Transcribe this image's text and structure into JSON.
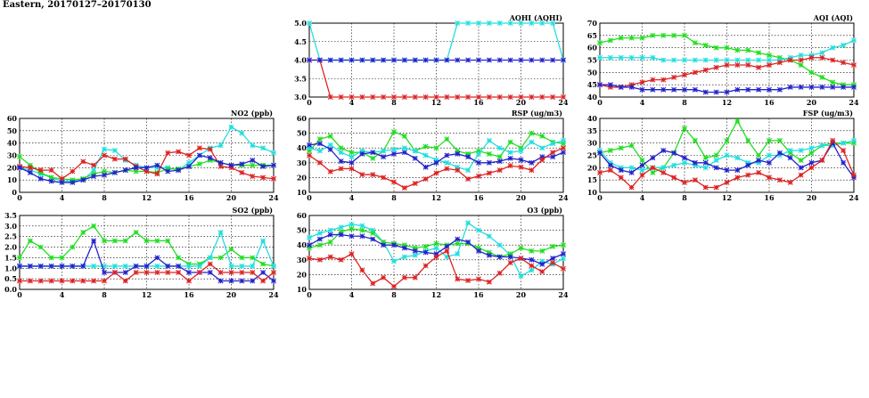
{
  "page_title": "Eastern, 20170127–20170130",
  "colors": {
    "cyan": "#22dede",
    "green": "#22dd22",
    "red": "#dd2222",
    "blue": "#2222cc",
    "grid": "#000000"
  },
  "chart_data": [
    {
      "id": "aqhi",
      "type": "line",
      "title": "AQHI (AQHI)",
      "xlim": [
        0,
        24
      ],
      "x_ticks": [
        0,
        4,
        8,
        12,
        16,
        20,
        24
      ],
      "ylim": [
        3.0,
        5.0
      ],
      "y_ticks": [
        3.0,
        3.5,
        4.0,
        4.5,
        5.0
      ],
      "y_tick_labels": [
        "3.0",
        "3.5",
        "4.0",
        "4.5",
        "5.0"
      ],
      "grid": true,
      "series": [
        {
          "color": "cyan",
          "values": [
            5,
            4,
            4,
            4,
            4,
            4,
            4,
            4,
            4,
            4,
            4,
            4,
            4,
            4,
            5,
            5,
            5,
            5,
            5,
            5,
            5,
            5,
            5,
            5,
            4
          ]
        },
        {
          "color": "red",
          "values": [
            4,
            4,
            3,
            3,
            3,
            3,
            3,
            3,
            3,
            3,
            3,
            3,
            3,
            3,
            3,
            3,
            3,
            3,
            3,
            3,
            3,
            3,
            3,
            3,
            3
          ]
        },
        {
          "color": "blue",
          "values": [
            4,
            4,
            4,
            4,
            4,
            4,
            4,
            4,
            4,
            4,
            4,
            4,
            4,
            4,
            4,
            4,
            4,
            4,
            4,
            4,
            4,
            4,
            4,
            4,
            4
          ]
        }
      ]
    },
    {
      "id": "aqi",
      "type": "line",
      "title": "AQI (AQI)",
      "xlim": [
        0,
        24
      ],
      "x_ticks": [
        0,
        4,
        8,
        12,
        16,
        20,
        24
      ],
      "ylim": [
        40,
        70
      ],
      "y_ticks": [
        40,
        45,
        50,
        55,
        60,
        65,
        70
      ],
      "y_tick_labels": [
        "40",
        "45",
        "50",
        "55",
        "60",
        "65",
        "70"
      ],
      "grid": true,
      "series": [
        {
          "color": "green",
          "values": [
            62,
            63,
            64,
            64,
            64,
            65,
            65,
            65,
            65,
            62,
            61,
            60,
            60,
            59,
            59,
            58,
            57,
            56,
            55,
            53,
            50,
            48,
            46,
            45,
            45
          ]
        },
        {
          "color": "cyan",
          "values": [
            56,
            56,
            56,
            56,
            56,
            56,
            55,
            55,
            55,
            55,
            55,
            55,
            55,
            55,
            55,
            55,
            55,
            55,
            56,
            57,
            57,
            58,
            60,
            61,
            63
          ]
        },
        {
          "color": "red",
          "values": [
            45,
            44,
            44,
            45,
            46,
            47,
            47,
            48,
            49,
            50,
            51,
            52,
            53,
            53,
            53,
            52,
            53,
            54,
            55,
            55,
            56,
            56,
            55,
            54,
            53
          ]
        },
        {
          "color": "blue",
          "values": [
            45,
            45,
            44,
            44,
            43,
            43,
            43,
            43,
            43,
            43,
            42,
            42,
            42,
            43,
            43,
            43,
            43,
            43,
            44,
            44,
            44,
            44,
            44,
            44,
            44
          ]
        }
      ]
    },
    {
      "id": "no2",
      "type": "line",
      "title": "NO2 (ppb)",
      "xlim": [
        0,
        24
      ],
      "x_ticks": [
        0,
        4,
        8,
        12,
        16,
        20,
        24
      ],
      "ylim": [
        0,
        60
      ],
      "y_ticks": [
        0,
        10,
        20,
        30,
        40,
        50,
        60
      ],
      "y_tick_labels": [
        "0",
        "10",
        "20",
        "30",
        "40",
        "50",
        "60"
      ],
      "grid": true,
      "series": [
        {
          "color": "cyan",
          "values": [
            20,
            18,
            15,
            12,
            9,
            9,
            10,
            18,
            35,
            34,
            26,
            22,
            20,
            20,
            20,
            18,
            24,
            30,
            36,
            38,
            53,
            48,
            38,
            36,
            32
          ]
        },
        {
          "color": "green",
          "values": [
            29,
            22,
            16,
            12,
            11,
            10,
            11,
            15,
            17,
            16,
            18,
            17,
            17,
            16,
            19,
            19,
            21,
            23,
            26,
            24,
            22,
            22,
            22,
            22,
            22
          ]
        },
        {
          "color": "red",
          "values": [
            21,
            20,
            18,
            18,
            11,
            17,
            25,
            22,
            30,
            27,
            27,
            21,
            17,
            15,
            32,
            33,
            30,
            36,
            35,
            21,
            20,
            16,
            13,
            12,
            11
          ]
        },
        {
          "color": "blue",
          "values": [
            20,
            16,
            11,
            9,
            8,
            8,
            10,
            13,
            14,
            16,
            18,
            20,
            20,
            22,
            17,
            18,
            21,
            30,
            28,
            24,
            22,
            23,
            26,
            21,
            22
          ]
        }
      ]
    },
    {
      "id": "rsp",
      "type": "line",
      "title": "RSP (ug/m3)",
      "xlim": [
        0,
        24
      ],
      "x_ticks": [
        0,
        4,
        8,
        12,
        16,
        20,
        24
      ],
      "ylim": [
        10,
        60
      ],
      "y_ticks": [
        10,
        20,
        30,
        40,
        50,
        60
      ],
      "y_tick_labels": [
        "10",
        "20",
        "30",
        "40",
        "50",
        "60"
      ],
      "grid": true,
      "series": [
        {
          "color": "green",
          "values": [
            38,
            46,
            48,
            40,
            37,
            37,
            33,
            38,
            51,
            48,
            38,
            41,
            40,
            46,
            38,
            36,
            38,
            36,
            34,
            44,
            40,
            50,
            48,
            44,
            43
          ]
        },
        {
          "color": "cyan",
          "values": [
            40,
            38,
            42,
            37,
            34,
            38,
            37,
            38,
            39,
            40,
            38,
            35,
            32,
            30,
            27,
            25,
            36,
            45,
            40,
            37,
            38,
            44,
            40,
            43,
            45
          ]
        },
        {
          "color": "blue",
          "values": [
            42,
            43,
            39,
            31,
            30,
            36,
            37,
            34,
            36,
            37,
            33,
            27,
            30,
            35,
            36,
            34,
            30,
            30,
            31,
            33,
            32,
            30,
            34,
            34,
            37
          ]
        },
        {
          "color": "red",
          "values": [
            35,
            30,
            24,
            26,
            26,
            22,
            22,
            20,
            17,
            13,
            16,
            19,
            23,
            26,
            25,
            19,
            21,
            23,
            25,
            28,
            27,
            25,
            32,
            37,
            40
          ]
        }
      ]
    },
    {
      "id": "fsp",
      "type": "line",
      "title": "FSP (ug/m3)",
      "xlim": [
        0,
        24
      ],
      "x_ticks": [
        0,
        4,
        8,
        12,
        16,
        20,
        24
      ],
      "ylim": [
        10,
        40
      ],
      "y_ticks": [
        10,
        15,
        20,
        25,
        30,
        35,
        40
      ],
      "y_tick_labels": [
        "10",
        "15",
        "20",
        "25",
        "30",
        "35",
        "40"
      ],
      "grid": true,
      "series": [
        {
          "color": "green",
          "values": [
            26,
            27,
            28,
            29,
            23,
            18,
            20,
            26,
            36,
            31,
            24,
            25,
            31,
            39,
            31,
            25,
            31,
            31,
            26,
            23,
            26,
            29,
            30,
            30,
            30
          ]
        },
        {
          "color": "cyan",
          "values": [
            27,
            22,
            20,
            20,
            19,
            20,
            20,
            21,
            22,
            21,
            20,
            23,
            25,
            24,
            22,
            22,
            25,
            25,
            27,
            27,
            28,
            29,
            29,
            30,
            31
          ]
        },
        {
          "color": "blue",
          "values": [
            26,
            21,
            19,
            18,
            21,
            24,
            27,
            26,
            24,
            22,
            22,
            20,
            19,
            19,
            21,
            23,
            22,
            26,
            24,
            20,
            22,
            23,
            30,
            22,
            16
          ]
        },
        {
          "color": "red",
          "values": [
            18,
            19,
            16,
            12,
            17,
            20,
            18,
            16,
            14,
            15,
            12,
            12,
            14,
            16,
            17,
            18,
            16,
            15,
            14,
            17,
            20,
            23,
            31,
            27,
            17
          ]
        }
      ]
    },
    {
      "id": "so2",
      "type": "line",
      "title": "SO2 (ppb)",
      "xlim": [
        0,
        24
      ],
      "x_ticks": [
        0,
        4,
        8,
        12,
        16,
        20,
        24
      ],
      "ylim": [
        0.0,
        3.5
      ],
      "y_ticks": [
        0.0,
        0.5,
        1.0,
        1.5,
        2.0,
        2.5,
        3.0,
        3.5
      ],
      "y_tick_labels": [
        "0.0",
        "0.5",
        "1.0",
        "1.5",
        "2.0",
        "2.5",
        "3.0",
        "3.5"
      ],
      "grid": true,
      "series": [
        {
          "color": "green",
          "values": [
            1.5,
            2.3,
            2.0,
            1.5,
            1.5,
            2.0,
            2.7,
            3.0,
            2.3,
            2.3,
            2.3,
            2.7,
            2.3,
            2.3,
            2.3,
            1.5,
            1.2,
            1.2,
            1.5,
            1.5,
            1.9,
            1.5,
            1.5,
            1.2,
            1.1
          ]
        },
        {
          "color": "cyan",
          "values": [
            1.1,
            1.1,
            1.1,
            1.1,
            1.1,
            1.1,
            1.1,
            1.1,
            1.1,
            1.1,
            1.1,
            1.1,
            1.1,
            1.1,
            1.1,
            1.1,
            1.1,
            1.1,
            1.5,
            2.7,
            1.1,
            1.1,
            1.1,
            2.3,
            1.1
          ]
        },
        {
          "color": "blue",
          "values": [
            1.1,
            1.1,
            1.1,
            1.1,
            1.1,
            1.1,
            1.1,
            2.3,
            0.8,
            0.8,
            0.8,
            1.1,
            1.1,
            1.5,
            1.1,
            1.1,
            0.8,
            0.8,
            0.8,
            0.4,
            0.4,
            0.4,
            0.4,
            0.8,
            0.4
          ]
        },
        {
          "color": "red",
          "values": [
            0.4,
            0.4,
            0.4,
            0.4,
            0.4,
            0.4,
            0.4,
            0.4,
            0.4,
            0.8,
            0.4,
            0.8,
            0.8,
            0.8,
            0.8,
            0.8,
            0.4,
            0.8,
            1.2,
            0.8,
            0.8,
            0.8,
            0.8,
            0.4,
            0.8
          ]
        }
      ]
    },
    {
      "id": "o3",
      "type": "line",
      "title": "O3 (ppb)",
      "xlim": [
        0,
        24
      ],
      "x_ticks": [
        0,
        4,
        8,
        12,
        16,
        20,
        24
      ],
      "ylim": [
        10,
        60
      ],
      "y_ticks": [
        10,
        20,
        30,
        40,
        50,
        60
      ],
      "y_tick_labels": [
        "10",
        "20",
        "30",
        "40",
        "50",
        "60"
      ],
      "grid": true,
      "series": [
        {
          "color": "cyan",
          "values": [
            45,
            48,
            50,
            52,
            54,
            53,
            50,
            42,
            29,
            32,
            33,
            36,
            38,
            32,
            34,
            55,
            50,
            46,
            40,
            33,
            19,
            23,
            29,
            27,
            31
          ]
        },
        {
          "color": "green",
          "values": [
            38,
            40,
            42,
            49,
            51,
            50,
            48,
            42,
            41,
            40,
            38,
            39,
            41,
            40,
            41,
            41,
            38,
            35,
            32,
            34,
            38,
            36,
            36,
            39,
            40
          ]
        },
        {
          "color": "blue",
          "values": [
            40,
            44,
            47,
            47,
            46,
            46,
            44,
            40,
            40,
            38,
            36,
            35,
            34,
            39,
            44,
            42,
            36,
            33,
            32,
            32,
            31,
            30,
            27,
            31,
            34
          ]
        },
        {
          "color": "red",
          "values": [
            31,
            30,
            32,
            30,
            34,
            23,
            14,
            18,
            12,
            18,
            18,
            26,
            32,
            36,
            17,
            16,
            17,
            15,
            21,
            28,
            31,
            26,
            22,
            28,
            24
          ]
        }
      ]
    }
  ]
}
